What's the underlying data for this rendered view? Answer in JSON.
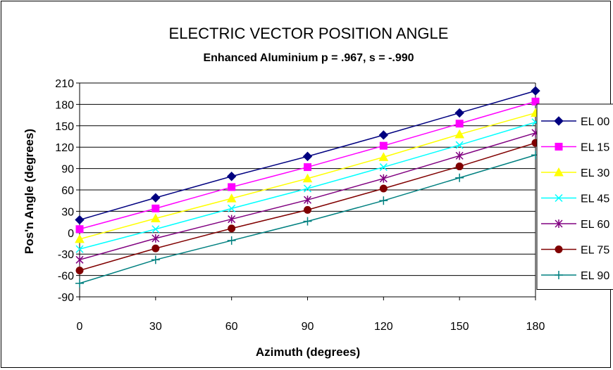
{
  "chart_data": {
    "type": "line",
    "title": "ELECTRIC VECTOR POSITION ANGLE",
    "subtitle": "Enhanced Aluminium p = .967, s = -.990",
    "xlabel": "Azimuth (degrees)",
    "ylabel": "Pos'n Angle (degrees)",
    "x": [
      0,
      30,
      60,
      90,
      120,
      150,
      180
    ],
    "xlim": [
      0,
      180
    ],
    "ylim": [
      -90,
      210
    ],
    "yticks": [
      210,
      180,
      150,
      120,
      90,
      60,
      30,
      0,
      -30,
      -60,
      -90
    ],
    "xticks": [
      0,
      30,
      60,
      90,
      120,
      150,
      180
    ],
    "grid": "horizontal",
    "legend_position": "right",
    "series": [
      {
        "name": "EL 00",
        "color": "#000080",
        "marker": "diamond",
        "values": [
          18,
          49,
          79,
          107,
          137,
          168,
          199
        ]
      },
      {
        "name": "EL 15",
        "color": "#FF00FF",
        "marker": "square",
        "values": [
          5,
          34,
          64,
          92,
          122,
          153,
          184
        ]
      },
      {
        "name": "EL 30",
        "color": "#FFFF00",
        "marker": "triangle",
        "values": [
          -9,
          20,
          48,
          76,
          106,
          138,
          168
        ]
      },
      {
        "name": "EL 45",
        "color": "#00FFFF",
        "marker": "x",
        "values": [
          -23,
          5,
          34,
          62,
          92,
          123,
          155
        ]
      },
      {
        "name": "EL 60",
        "color": "#800080",
        "marker": "star",
        "values": [
          -38,
          -8,
          19,
          46,
          76,
          108,
          140
        ]
      },
      {
        "name": "EL 75",
        "color": "#800000",
        "marker": "circle",
        "values": [
          -53,
          -22,
          6,
          32,
          62,
          93,
          126
        ]
      },
      {
        "name": "EL 90",
        "color": "#008080",
        "marker": "plus",
        "values": [
          -71,
          -38,
          -11,
          16,
          45,
          77,
          109
        ]
      }
    ]
  }
}
